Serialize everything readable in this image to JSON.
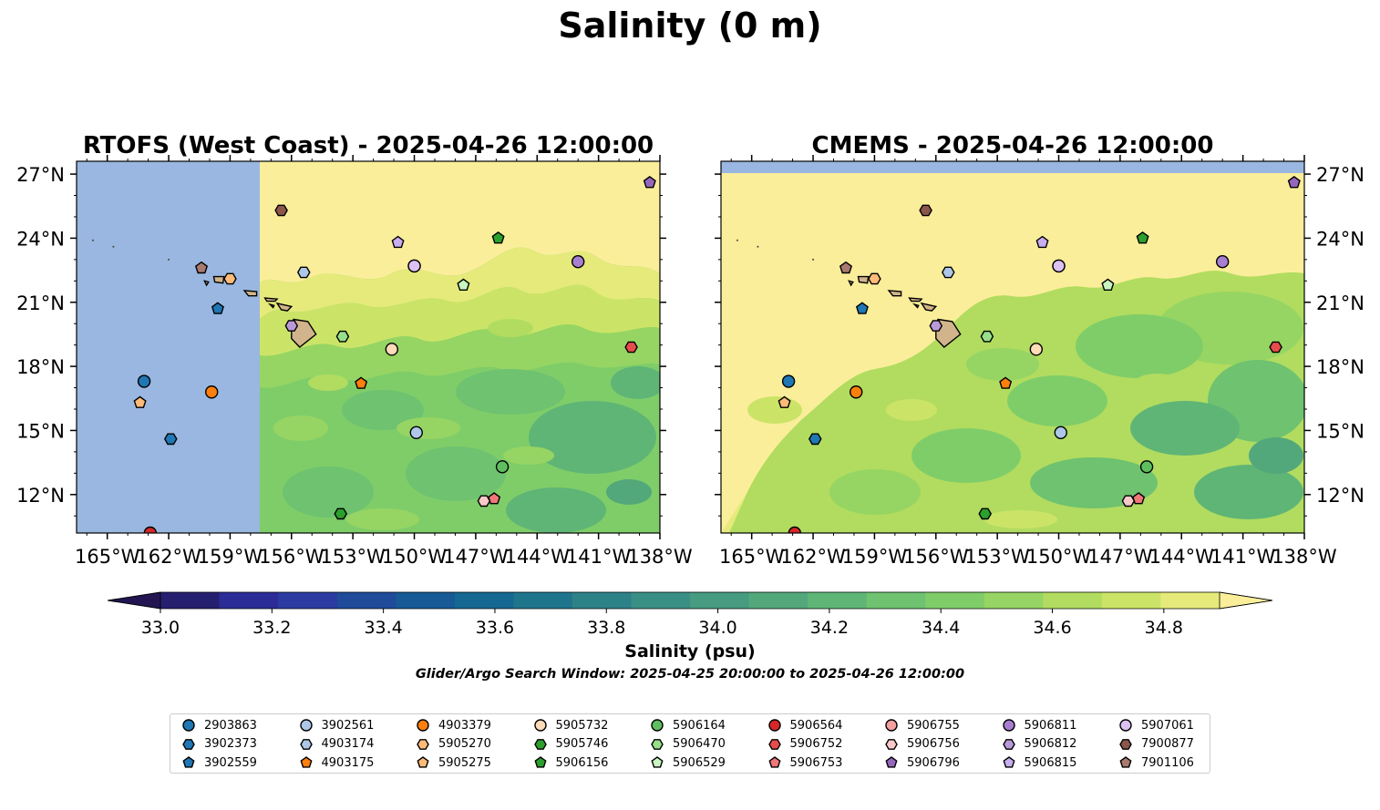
{
  "figure": {
    "title": "Salinity (0 m)",
    "colorbar_label": "Salinity (psu)",
    "search_window": "Glider/Argo Search Window: 2025-04-25 20:00:00 to 2025-04-26 12:00:00"
  },
  "chart_data": [
    {
      "type": "heatmap",
      "title": "RTOFS (West Coast) - 2025-04-26 12:00:00",
      "variable": "Salinity (psu)",
      "xlim": [
        -166.5,
        -138
      ],
      "ylim": [
        10.2,
        27.6
      ],
      "x_ticks": [
        "165°W",
        "162°W",
        "159°W",
        "156°W",
        "153°W",
        "150°W",
        "147°W",
        "144°W",
        "141°W",
        "138°W"
      ],
      "y_ticks": [
        "12°N",
        "15°N",
        "18°N",
        "21°N",
        "24°N",
        "27°N"
      ],
      "y_axis_side": "left",
      "no_data_region": {
        "lon_max": -157.5,
        "color": "#99b7e0"
      },
      "field_summary": "fresher 34.7–34.9 psu north of ~22°N, saltier-green 34.2–34.6 psu to the south"
    },
    {
      "type": "heatmap",
      "title": "CMEMS - 2025-04-26 12:00:00",
      "variable": "Salinity (psu)",
      "xlim": [
        -166.5,
        -138
      ],
      "ylim": [
        10.2,
        27.6
      ],
      "x_ticks": [
        "165°W",
        "162°W",
        "159°W",
        "156°W",
        "153°W",
        "150°W",
        "147°W",
        "144°W",
        "141°W",
        "138°W"
      ],
      "y_ticks": [
        "12°N",
        "15°N",
        "18°N",
        "21°N",
        "24°N",
        "27°N"
      ],
      "y_axis_side": "right",
      "no_data_region": {
        "lat_min": 27.0,
        "color": "#99b7e0"
      },
      "field_summary": "mostly 34.8–34.9 psu in the north and west, eddying 34.3–34.6 psu in the south-east"
    }
  ],
  "colorbar": {
    "min": 33.0,
    "max": 34.9,
    "step": 0.1,
    "tick_values": [
      "33.0",
      "33.2",
      "33.4",
      "33.6",
      "33.8",
      "34.0",
      "34.2",
      "34.4",
      "34.6",
      "34.8"
    ],
    "extend": "both",
    "colors": [
      "#251f6f",
      "#2b2c97",
      "#2b3ba1",
      "#1f4b9a",
      "#175a95",
      "#156891",
      "#1f758c",
      "#2d8288",
      "#3a8f85",
      "#469b80",
      "#52a87b",
      "#5fb576",
      "#6ec270",
      "#7fcd69",
      "#96d563",
      "#b1dc60",
      "#cbe467",
      "#e5ea7b"
    ],
    "extend_low_color": "#221552",
    "extend_high_color": "#fbee9a"
  },
  "floats": [
    {
      "id": "2903863",
      "marker": "circle",
      "color": "#1f77b4",
      "lon": -163.2,
      "lat": 17.3
    },
    {
      "id": "3902373",
      "marker": "hexagon",
      "color": "#1f77b4",
      "lon": -161.9,
      "lat": 14.6
    },
    {
      "id": "3902559",
      "marker": "pentagon",
      "color": "#1f77b4",
      "lon": -159.6,
      "lat": 20.7
    },
    {
      "id": "3902561",
      "marker": "circle",
      "color": "#aec7e8",
      "lon": -149.9,
      "lat": 14.9
    },
    {
      "id": "4903174",
      "marker": "hexagon",
      "color": "#aec7e8",
      "lon": -155.4,
      "lat": 22.4
    },
    {
      "id": "4903379",
      "marker": "circle",
      "color": "#ff7f0e",
      "lon": -159.9,
      "lat": 16.8
    },
    {
      "id": "4903175",
      "marker": "pentagon",
      "color": "#ff7f0e",
      "lon": -152.6,
      "lat": 17.2
    },
    {
      "id": "5905270",
      "marker": "hexagon",
      "color": "#ffbb78",
      "lon": -159.0,
      "lat": 22.1
    },
    {
      "id": "5905275",
      "marker": "pentagon",
      "color": "#ffbb78",
      "lon": -163.4,
      "lat": 16.3
    },
    {
      "id": "5905732",
      "marker": "circle",
      "color": "#ffdbb8",
      "lon": -151.1,
      "lat": 18.8
    },
    {
      "id": "5905746",
      "marker": "hexagon",
      "color": "#2ca02c",
      "lon": -153.6,
      "lat": 11.1
    },
    {
      "id": "5906156",
      "marker": "pentagon",
      "color": "#2ca02c",
      "lon": -145.9,
      "lat": 24.0
    },
    {
      "id": "5906164",
      "marker": "circle",
      "color": "#5fbf5f",
      "lon": -145.7,
      "lat": 13.3
    },
    {
      "id": "5906470",
      "marker": "hexagon",
      "color": "#98df8a",
      "lon": -153.5,
      "lat": 19.4
    },
    {
      "id": "5906529",
      "marker": "pentagon",
      "color": "#c8f5c0",
      "lon": -147.6,
      "lat": 21.8
    },
    {
      "id": "5906564",
      "marker": "circle",
      "color": "#d62728",
      "lon": -162.9,
      "lat": 10.2
    },
    {
      "id": "5906752",
      "marker": "hexagon",
      "color": "#e74c4c",
      "lon": -139.4,
      "lat": 18.9
    },
    {
      "id": "5906753",
      "marker": "pentagon",
      "color": "#f07878",
      "lon": -146.1,
      "lat": 11.8
    },
    {
      "id": "5906755",
      "marker": "circle",
      "color": "#f4a0a0",
      "lon": -150.0,
      "lat": 22.7
    },
    {
      "id": "5906756",
      "marker": "hexagon",
      "color": "#f9c9c9",
      "lon": -146.6,
      "lat": 11.7
    },
    {
      "id": "5906796",
      "marker": "pentagon",
      "color": "#9467bd",
      "lon": -138.5,
      "lat": 26.6
    },
    {
      "id": "5906811",
      "marker": "circle",
      "color": "#a77fd0",
      "lon": -142.0,
      "lat": 22.9
    },
    {
      "id": "5906812",
      "marker": "hexagon",
      "color": "#b99ad9",
      "lon": -156.0,
      "lat": 19.9
    },
    {
      "id": "5906815",
      "marker": "pentagon",
      "color": "#c8adf0",
      "lon": -150.8,
      "lat": 23.8
    },
    {
      "id": "5907061",
      "marker": "circle",
      "color": "#dcc1f5",
      "lon": -150.0,
      "lat": 22.7
    },
    {
      "id": "7900877",
      "marker": "hexagon",
      "color": "#8c564b",
      "lon": -156.5,
      "lat": 25.3
    },
    {
      "id": "7901106",
      "marker": "pentagon",
      "color": "#a97a6f",
      "lon": -160.4,
      "lat": 22.6
    }
  ],
  "legend_order": [
    "2903863",
    "3902373",
    "3902559",
    "3902561",
    "4903174",
    "4903175",
    "4903379",
    "5905270",
    "5905275",
    "5905732",
    "5905746",
    "5906156",
    "5906164",
    "5906470",
    "5906529",
    "5906564",
    "5906752",
    "5906753",
    "5906755",
    "5906756",
    "5906796",
    "5906811",
    "5906812",
    "5906815",
    "5907061",
    "7900877",
    "7901106"
  ],
  "extra_glyphs": [
    {
      "id": "5906756",
      "lon": -146.6,
      "lat": 11.7
    }
  ],
  "map_colors": {
    "land": "#d2b48c",
    "land_edge": "#000000",
    "ocean_no_data": "#99b7e0"
  }
}
